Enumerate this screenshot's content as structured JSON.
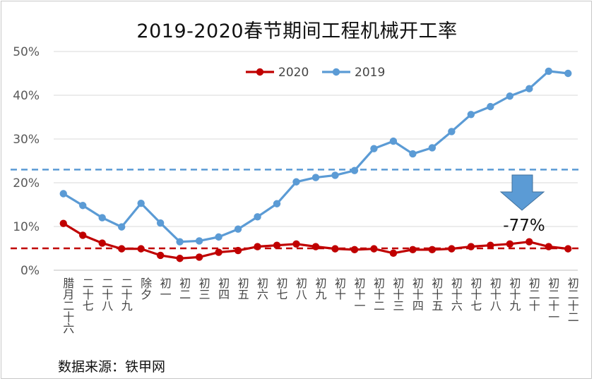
{
  "title": "2019-2020春节期间工程机械开工率",
  "source": "数据来源：铁甲网",
  "colors": {
    "s2020": "#C00000",
    "s2019": "#5B9BD5",
    "arrow": "#5B9BD5",
    "grid": "#d9d9d9"
  },
  "chart_data": {
    "type": "line",
    "title": "2019-2020春节期间工程机械开工率",
    "xlabel": "",
    "ylabel": "",
    "ylim": [
      0,
      50
    ],
    "yticks": [
      "0%",
      "10%",
      "20%",
      "30%",
      "40%",
      "50%"
    ],
    "grid": true,
    "legend_position": "top-center",
    "categories": [
      "腊月二十六",
      "二十七",
      "二十八",
      "二十九",
      "除夕",
      "初一",
      "初二",
      "初三",
      "初四",
      "初五",
      "初六",
      "初七",
      "初八",
      "初九",
      "初十",
      "初十一",
      "初十二",
      "初十三",
      "初十四",
      "初十五",
      "初十六",
      "初十七",
      "初十八",
      "初十九",
      "初二十",
      "初二十一",
      "初二十二"
    ],
    "series": [
      {
        "name": "2020",
        "color": "#C00000",
        "values": [
          10.7,
          8.0,
          6.2,
          4.9,
          4.9,
          3.4,
          2.7,
          3.0,
          4.1,
          4.5,
          5.4,
          5.7,
          6.0,
          5.4,
          4.9,
          4.7,
          4.9,
          3.9,
          4.7,
          4.7,
          4.9,
          5.4,
          5.7,
          6.0,
          6.5,
          5.4,
          4.9
        ]
      },
      {
        "name": "2019",
        "color": "#5B9BD5",
        "values": [
          17.5,
          14.8,
          12.0,
          9.9,
          15.3,
          10.8,
          6.5,
          6.7,
          7.6,
          9.4,
          12.2,
          15.2,
          20.2,
          21.2,
          21.7,
          22.8,
          27.8,
          29.5,
          26.6,
          28.0,
          31.7,
          35.6,
          37.4,
          39.8,
          41.5,
          45.5,
          45.0
        ]
      }
    ],
    "reference_lines": [
      {
        "series": "2019",
        "value": 23.0
      },
      {
        "series": "2020",
        "value": 5.0
      }
    ],
    "annotations": [
      {
        "text": "-77%"
      }
    ]
  }
}
